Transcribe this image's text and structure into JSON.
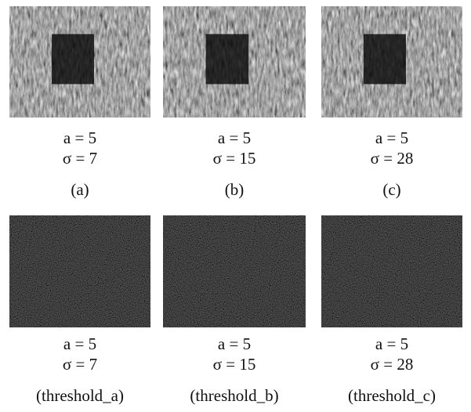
{
  "panels": [
    {
      "a": "a = 5",
      "sigma": "σ = 7",
      "caption": "(a)"
    },
    {
      "a": "a = 5",
      "sigma": "σ = 15",
      "caption": "(b)"
    },
    {
      "a": "a = 5",
      "sigma": "σ = 28",
      "caption": "(c)"
    },
    {
      "a": "a = 5",
      "sigma": "σ = 7",
      "caption": "(threshold_a)"
    },
    {
      "a": "a = 5",
      "sigma": "σ = 15",
      "caption": "(threshold_b)"
    },
    {
      "a": "a = 5",
      "sigma": "σ = 28",
      "caption": "(threshold_c)"
    }
  ]
}
